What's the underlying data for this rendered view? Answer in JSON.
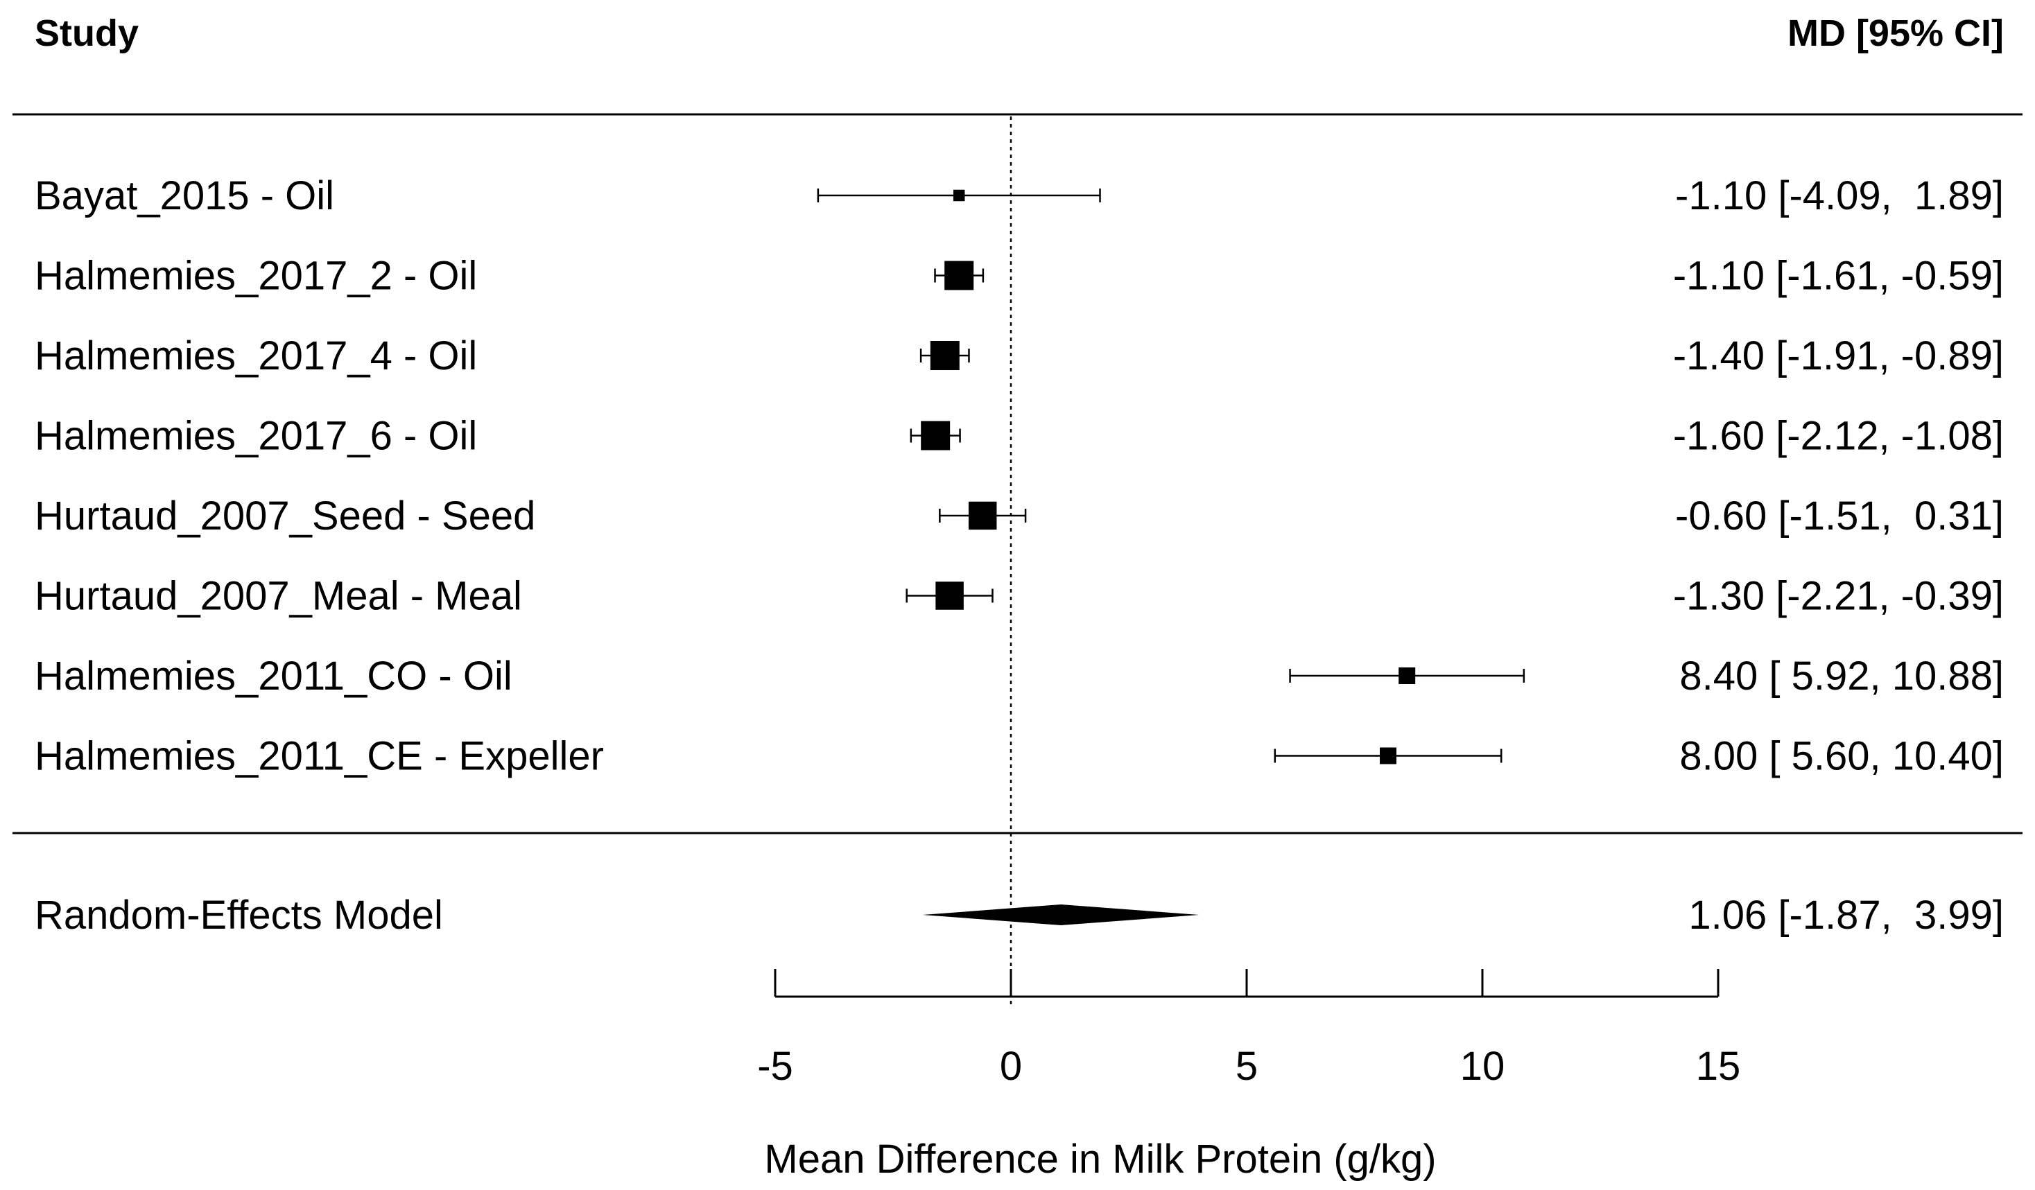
{
  "chart_data": {
    "type": "forest",
    "title": "",
    "header": {
      "study": "Study",
      "effect": "MD [95% CI]"
    },
    "xlabel": "Mean Difference in Milk Protein (g/kg)",
    "xlim": [
      -5,
      15
    ],
    "xticks": [
      -5,
      0,
      5,
      10,
      15
    ],
    "xtick_labels": [
      "-5",
      "0",
      "5",
      "10",
      "15"
    ],
    "reference_line": 0,
    "studies": [
      {
        "label": "Bayat_2015 - Oil",
        "md": -1.1,
        "lower": -4.09,
        "upper": 1.89,
        "text": "-1.10 [-4.09,  1.89]",
        "weight": 0.15
      },
      {
        "label": "Halmemies_2017_2 - Oil",
        "md": -1.1,
        "lower": -1.61,
        "upper": -0.59,
        "text": "-1.10 [-1.61, -0.59]",
        "weight": 1.0
      },
      {
        "label": "Halmemies_2017_4 - Oil",
        "md": -1.4,
        "lower": -1.91,
        "upper": -0.89,
        "text": "-1.40 [-1.91, -0.89]",
        "weight": 1.0
      },
      {
        "label": "Halmemies_2017_6 - Oil",
        "md": -1.6,
        "lower": -2.12,
        "upper": -1.08,
        "text": "-1.60 [-2.12, -1.08]",
        "weight": 1.0
      },
      {
        "label": "Hurtaud_2007_Seed - Seed",
        "md": -0.6,
        "lower": -1.51,
        "upper": 0.31,
        "text": "-0.60 [-1.51,  0.31]",
        "weight": 0.95
      },
      {
        "label": "Hurtaud_2007_Meal - Meal",
        "md": -1.3,
        "lower": -2.21,
        "upper": -0.39,
        "text": "-1.30 [-2.21, -0.39]",
        "weight": 0.95
      },
      {
        "label": "Halmemies_2011_CO - Oil",
        "md": 8.4,
        "lower": 5.92,
        "upper": 10.88,
        "text": "8.40 [ 5.92, 10.88]",
        "weight": 0.4
      },
      {
        "label": "Halmemies_2011_CE - Expeller",
        "md": 8.0,
        "lower": 5.6,
        "upper": 10.4,
        "text": "8.00 [ 5.60, 10.40]",
        "weight": 0.4
      }
    ],
    "summary": {
      "label": "Random-Effects Model",
      "md": 1.06,
      "lower": -1.87,
      "upper": 3.99,
      "text": "1.06 [-1.87,  3.99]"
    },
    "grid": false
  }
}
